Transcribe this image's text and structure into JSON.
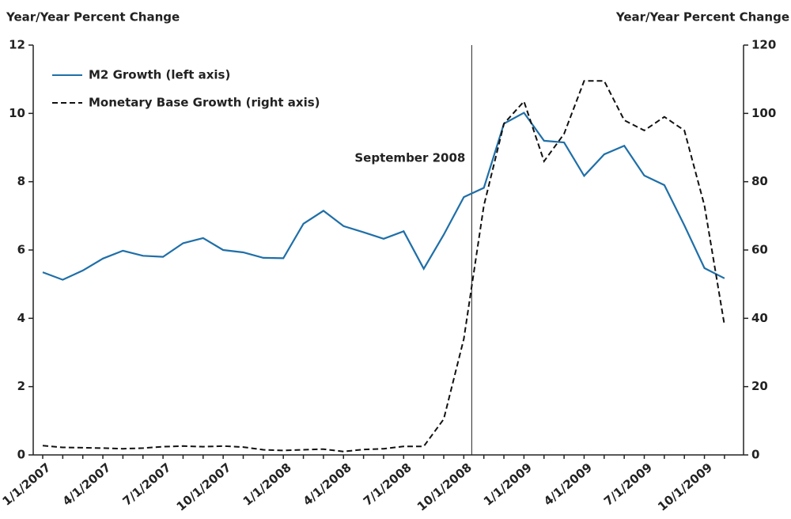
{
  "chart_data": {
    "type": "line",
    "y_label": "Year/Year Percent Change",
    "y2_label": "Year/Year Percent Change",
    "categories": [
      "1/1/2007",
      null,
      null,
      "4/1/2007",
      null,
      null,
      "7/1/2007",
      null,
      null,
      "10/1/2007",
      null,
      null,
      "1/1/2008",
      null,
      null,
      "4/1/2008",
      null,
      null,
      "7/1/2008",
      null,
      null,
      "10/1/2008",
      null,
      null,
      "1/1/2009",
      null,
      null,
      "4/1/2009",
      null,
      null,
      "7/1/2009",
      null,
      null,
      "10/1/2009",
      null
    ],
    "series": [
      {
        "name": "M2 Growth (left axis)",
        "color": "#1f6fa8",
        "dash": false,
        "values": [
          5.35,
          5.13,
          5.4,
          5.75,
          5.98,
          5.83,
          5.8,
          6.2,
          6.35,
          6.0,
          5.93,
          5.77,
          5.76,
          6.77,
          7.15,
          6.7,
          6.52,
          6.33,
          6.55,
          5.45,
          6.45,
          7.55,
          7.82,
          9.7,
          10.02,
          9.2,
          9.15,
          8.17,
          8.8,
          9.05,
          8.18,
          7.9,
          6.72,
          5.47,
          5.17
        ]
      },
      {
        "name": "Monetary Base Growth (right axis)",
        "color": "#111111",
        "dash": true,
        "axis": "y2",
        "values": [
          2.7,
          2.2,
          2.1,
          2.0,
          1.8,
          2.0,
          2.4,
          2.6,
          2.4,
          2.6,
          2.3,
          1.5,
          1.3,
          1.5,
          1.7,
          1.0,
          1.6,
          1.8,
          2.5,
          2.5,
          10.5,
          34,
          73,
          97,
          103.5,
          86,
          94,
          109.5,
          109.5,
          98,
          95,
          99,
          95,
          73,
          38
        ]
      }
    ],
    "ylim": [
      0,
      12
    ],
    "yticks": [
      0,
      2,
      4,
      6,
      8,
      10,
      12
    ],
    "y2lim": [
      0,
      120
    ],
    "y2ticks": [
      0,
      20,
      40,
      60,
      80,
      100,
      120
    ],
    "annotation": {
      "text": "September 2008",
      "at": "10/1/2008"
    },
    "legend": "top-left"
  }
}
